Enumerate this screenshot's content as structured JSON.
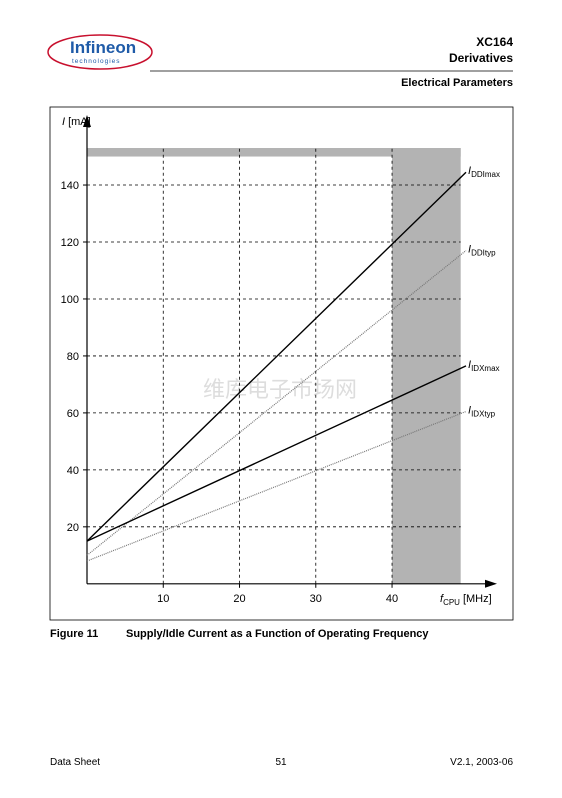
{
  "header": {
    "logo": {
      "name": "Infineon",
      "tagline": "technologies"
    },
    "product": "XC164",
    "subtitle": "Derivatives",
    "section": "Electrical Parameters"
  },
  "chart_data": {
    "type": "line",
    "y_label": {
      "symbol": "I",
      "unit": "[mA]"
    },
    "x_label": {
      "symbol": "f",
      "subscript": "CPU",
      "unit": "[MHz]"
    },
    "x": [
      0,
      49.7
    ],
    "xlim": [
      0,
      53.5
    ],
    "ylim": [
      0,
      153
    ],
    "xticks": [
      10,
      20,
      30,
      40
    ],
    "yticks": [
      20,
      40,
      60,
      80,
      100,
      120,
      140
    ],
    "grid": true,
    "shaded_x": [
      40,
      49
    ],
    "shaded_y": [
      150,
      153
    ],
    "shade_color": "#b3b3b3",
    "watermark": "维库电子市场网",
    "series": [
      {
        "symbol": "I",
        "subscript": "DDImax",
        "color": "#000000",
        "values": [
          15,
          144.5
        ]
      },
      {
        "symbol": "I",
        "subscript": "DDItyp",
        "color": "#777777",
        "values": [
          10,
          117
        ]
      },
      {
        "symbol": "I",
        "subscript": "IDXmax",
        "color": "#000000",
        "values": [
          15,
          76.5
        ]
      },
      {
        "symbol": "I",
        "subscript": "IDXtyp",
        "color": "#777777",
        "values": [
          8,
          60.5
        ]
      }
    ]
  },
  "caption": {
    "number": "Figure 11",
    "text": "Supply/Idle Current as a Function of Operating Frequency"
  },
  "footer": {
    "left": "Data Sheet",
    "page": "51",
    "right": "V2.1, 2003-06"
  }
}
